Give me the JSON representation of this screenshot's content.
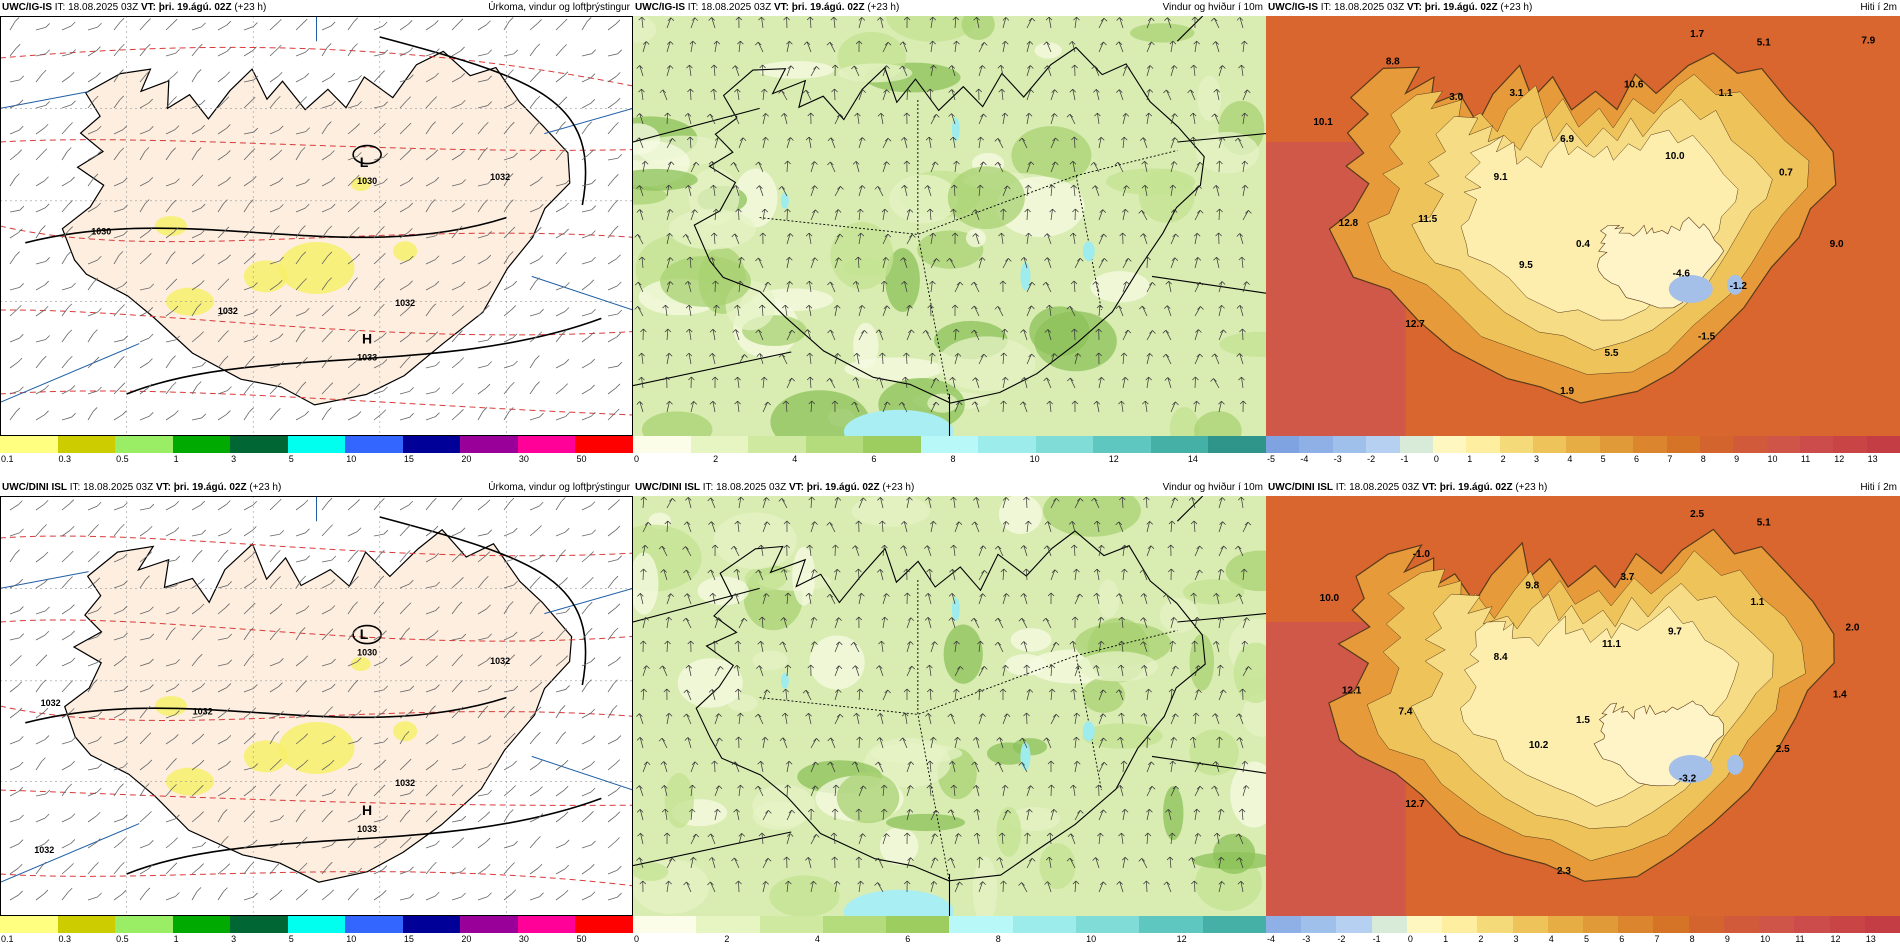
{
  "panels": [
    {
      "id": "p1",
      "model": "UWC/IG-IS",
      "it_label": "IT:",
      "it": "18.08.2025 03Z",
      "vt_label": "VT:",
      "vt": "þri. 19.ágú. 02Z",
      "lead": "(+23 h)",
      "variable": "Úrkoma, vindur og loftþrýstingur",
      "kind": "precip",
      "map_labels": [
        {
          "text": "L",
          "fx": 0.575,
          "fy": 0.36,
          "size": 14
        },
        {
          "text": "1030",
          "fx": 0.58,
          "fy": 0.4,
          "size": 9
        },
        {
          "text": "1030",
          "fx": 0.16,
          "fy": 0.52,
          "size": 9
        },
        {
          "text": "1032",
          "fx": 0.36,
          "fy": 0.71,
          "size": 9
        },
        {
          "text": "1032",
          "fx": 0.64,
          "fy": 0.69,
          "size": 9
        },
        {
          "text": "1032",
          "fx": 0.79,
          "fy": 0.39,
          "size": 9
        },
        {
          "text": "H",
          "fx": 0.58,
          "fy": 0.78,
          "size": 14
        },
        {
          "text": "1033",
          "fx": 0.58,
          "fy": 0.82,
          "size": 9
        }
      ],
      "colorbar": {
        "colors": [
          "#ffff80",
          "#cccc00",
          "#99ee66",
          "#00aa00",
          "#006633",
          "#00ffee",
          "#3366ff",
          "#000099",
          "#990099",
          "#ff0099",
          "#ff0000"
        ],
        "ticks": [
          "0.1",
          "0.3",
          "0.5",
          "1",
          "3",
          "5",
          "10",
          "15",
          "20",
          "30",
          "50"
        ]
      }
    },
    {
      "id": "p2",
      "model": "UWC/IG-IS",
      "it_label": "IT:",
      "it": "18.08.2025 03Z",
      "vt_label": "VT:",
      "vt": "þri. 19.ágú. 02Z",
      "lead": "(+23 h)",
      "variable": "Vindur og hviður í 10m",
      "kind": "wind",
      "map_labels": [],
      "colorbar": {
        "colors": [
          "#fbfde8",
          "#e6f5c2",
          "#cfeaa0",
          "#b4dc7c",
          "#9ccd5e",
          "#b8f8f8",
          "#9cecec",
          "#7fdcd6",
          "#5ec8c0",
          "#45b0a6",
          "#2f948a"
        ],
        "ticks": [
          "0",
          "2",
          "4",
          "6",
          "8",
          "10",
          "12",
          "14"
        ]
      }
    },
    {
      "id": "p3",
      "model": "UWC/IG-IS",
      "it_label": "IT:",
      "it": "18.08.2025 03Z",
      "vt_label": "VT:",
      "vt": "þri. 19.ágú. 02Z",
      "lead": "(+23 h)",
      "variable": "Hiti í 2m",
      "kind": "temp",
      "map_labels": [
        {
          "text": "1.7",
          "fx": 0.68,
          "fy": 0.05,
          "size": 10
        },
        {
          "text": "5.1",
          "fx": 0.785,
          "fy": 0.07,
          "size": 10
        },
        {
          "text": "7.9",
          "fx": 0.95,
          "fy": 0.065,
          "size": 10
        },
        {
          "text": "8.8",
          "fx": 0.2,
          "fy": 0.115,
          "size": 10
        },
        {
          "text": "3.0",
          "fx": 0.3,
          "fy": 0.2,
          "size": 10
        },
        {
          "text": "3.1",
          "fx": 0.395,
          "fy": 0.19,
          "size": 10
        },
        {
          "text": "10.6",
          "fx": 0.58,
          "fy": 0.17,
          "size": 10
        },
        {
          "text": "1.1",
          "fx": 0.725,
          "fy": 0.19,
          "size": 10
        },
        {
          "text": "10.1",
          "fx": 0.09,
          "fy": 0.26,
          "size": 10
        },
        {
          "text": "6.9",
          "fx": 0.475,
          "fy": 0.3,
          "size": 10
        },
        {
          "text": "10.0",
          "fx": 0.645,
          "fy": 0.34,
          "size": 10
        },
        {
          "text": "9.1",
          "fx": 0.37,
          "fy": 0.39,
          "size": 10
        },
        {
          "text": "0.7",
          "fx": 0.82,
          "fy": 0.38,
          "size": 10
        },
        {
          "text": "12.8",
          "fx": 0.13,
          "fy": 0.5,
          "size": 10
        },
        {
          "text": "11.5",
          "fx": 0.255,
          "fy": 0.49,
          "size": 10
        },
        {
          "text": "0.4",
          "fx": 0.5,
          "fy": 0.55,
          "size": 10
        },
        {
          "text": "9.0",
          "fx": 0.9,
          "fy": 0.55,
          "size": 10
        },
        {
          "text": "9.5",
          "fx": 0.41,
          "fy": 0.6,
          "size": 10
        },
        {
          "text": "-4.6",
          "fx": 0.655,
          "fy": 0.62,
          "size": 10
        },
        {
          "text": "-1.2",
          "fx": 0.745,
          "fy": 0.65,
          "size": 10
        },
        {
          "text": "12.7",
          "fx": 0.235,
          "fy": 0.74,
          "size": 10
        },
        {
          "text": "-1.5",
          "fx": 0.695,
          "fy": 0.77,
          "size": 10
        },
        {
          "text": "5.5",
          "fx": 0.545,
          "fy": 0.81,
          "size": 10
        },
        {
          "text": "1.9",
          "fx": 0.475,
          "fy": 0.9,
          "size": 10
        }
      ],
      "colorbar": {
        "colors": [
          "#7fa2e0",
          "#8eb0e6",
          "#a0c0ec",
          "#b6d0f2",
          "#d8ead8",
          "#fff7c0",
          "#fdeea0",
          "#f5da7a",
          "#eec35a",
          "#e7ad45",
          "#e19a38",
          "#db862e",
          "#d57426",
          "#d4642e",
          "#d15a3a",
          "#cf5548",
          "#cc4c4c",
          "#c94444",
          "#c43c44"
        ],
        "ticks": [
          "-5",
          "-4",
          "-3",
          "-2",
          "-1",
          "0",
          "1",
          "2",
          "3",
          "4",
          "5",
          "6",
          "7",
          "8",
          "9",
          "10",
          "11",
          "12",
          "13"
        ]
      }
    },
    {
      "id": "p4",
      "model": "UWC/DINI ISL",
      "it_label": "IT:",
      "it": "18.08.2025 03Z",
      "vt_label": "VT:",
      "vt": "þri. 19.ágú. 02Z",
      "lead": "(+23 h)",
      "variable": "Úrkoma, vindur og loftþrýstingur",
      "kind": "precip",
      "map_labels": [
        {
          "text": "L",
          "fx": 0.575,
          "fy": 0.34,
          "size": 14
        },
        {
          "text": "1030",
          "fx": 0.58,
          "fy": 0.38,
          "size": 9
        },
        {
          "text": "1032",
          "fx": 0.32,
          "fy": 0.52,
          "size": 9
        },
        {
          "text": "1032",
          "fx": 0.08,
          "fy": 0.5,
          "size": 9
        },
        {
          "text": "1032",
          "fx": 0.64,
          "fy": 0.69,
          "size": 9
        },
        {
          "text": "1032",
          "fx": 0.79,
          "fy": 0.4,
          "size": 9
        },
        {
          "text": "1032",
          "fx": 0.07,
          "fy": 0.85,
          "size": 9
        },
        {
          "text": "H",
          "fx": 0.58,
          "fy": 0.76,
          "size": 14
        },
        {
          "text": "1033",
          "fx": 0.58,
          "fy": 0.8,
          "size": 9
        }
      ],
      "colorbar": {
        "colors": [
          "#ffff80",
          "#cccc00",
          "#99ee66",
          "#00aa00",
          "#006633",
          "#00ffee",
          "#3366ff",
          "#000099",
          "#990099",
          "#ff0099",
          "#ff0000"
        ],
        "ticks": [
          "0.1",
          "0.3",
          "0.5",
          "1",
          "3",
          "5",
          "10",
          "15",
          "20",
          "30",
          "50"
        ]
      }
    },
    {
      "id": "p5",
      "model": "UWC/DINI ISL",
      "it_label": "IT:",
      "it": "18.08.2025 03Z",
      "vt_label": "VT:",
      "vt": "þri. 19.ágú. 02Z",
      "lead": "(+23 h)",
      "variable": "Vindur og hviður í 10m",
      "kind": "wind",
      "map_labels": [],
      "colorbar": {
        "colors": [
          "#fbfde8",
          "#e6f5c2",
          "#cfeaa0",
          "#b4dc7c",
          "#9ccd5e",
          "#b8f8f8",
          "#9cecec",
          "#7fdcd6",
          "#5ec8c0",
          "#45b0a6"
        ],
        "ticks": [
          "0",
          "2",
          "4",
          "6",
          "8",
          "10",
          "12"
        ]
      }
    },
    {
      "id": "p6",
      "model": "UWC/DINI ISL",
      "it_label": "IT:",
      "it": "18.08.2025 03Z",
      "vt_label": "VT:",
      "vt": "þri. 19.ágú. 02Z",
      "lead": "(+23 h)",
      "variable": "Hiti í 2m",
      "kind": "temp",
      "map_labels": [
        {
          "text": "2.5",
          "fx": 0.68,
          "fy": 0.05,
          "size": 10
        },
        {
          "text": "5.1",
          "fx": 0.785,
          "fy": 0.07,
          "size": 10
        },
        {
          "text": "-1.0",
          "fx": 0.245,
          "fy": 0.145,
          "size": 10
        },
        {
          "text": "10.0",
          "fx": 0.1,
          "fy": 0.25,
          "size": 10
        },
        {
          "text": "9.8",
          "fx": 0.42,
          "fy": 0.22,
          "size": 10
        },
        {
          "text": "3.7",
          "fx": 0.57,
          "fy": 0.2,
          "size": 10
        },
        {
          "text": "1.1",
          "fx": 0.775,
          "fy": 0.26,
          "size": 10
        },
        {
          "text": "9.7",
          "fx": 0.645,
          "fy": 0.33,
          "size": 10
        },
        {
          "text": "2.0",
          "fx": 0.925,
          "fy": 0.32,
          "size": 10
        },
        {
          "text": "11.1",
          "fx": 0.545,
          "fy": 0.36,
          "size": 10
        },
        {
          "text": "8.4",
          "fx": 0.37,
          "fy": 0.39,
          "size": 10
        },
        {
          "text": "12.1",
          "fx": 0.135,
          "fy": 0.47,
          "size": 10
        },
        {
          "text": "1.4",
          "fx": 0.905,
          "fy": 0.48,
          "size": 10
        },
        {
          "text": "7.4",
          "fx": 0.22,
          "fy": 0.52,
          "size": 10
        },
        {
          "text": "1.5",
          "fx": 0.5,
          "fy": 0.54,
          "size": 10
        },
        {
          "text": "10.2",
          "fx": 0.43,
          "fy": 0.6,
          "size": 10
        },
        {
          "text": "2.5",
          "fx": 0.815,
          "fy": 0.61,
          "size": 10
        },
        {
          "text": "-3.2",
          "fx": 0.665,
          "fy": 0.68,
          "size": 10
        },
        {
          "text": "12.7",
          "fx": 0.235,
          "fy": 0.74,
          "size": 10
        },
        {
          "text": "2.3",
          "fx": 0.47,
          "fy": 0.9,
          "size": 10
        }
      ],
      "colorbar": {
        "colors": [
          "#8eb0e6",
          "#a0c0ec",
          "#b6d0f2",
          "#d8ead8",
          "#fff7c0",
          "#fdeea0",
          "#f5da7a",
          "#eec35a",
          "#e7ad45",
          "#e19a38",
          "#db862e",
          "#d57426",
          "#d4642e",
          "#d15a3a",
          "#cf5548",
          "#cc4c4c",
          "#c94444",
          "#c43c44"
        ],
        "ticks": [
          "-4",
          "-3",
          "-2",
          "-1",
          "0",
          "1",
          "2",
          "3",
          "4",
          "5",
          "6",
          "7",
          "8",
          "9",
          "10",
          "11",
          "12",
          "13"
        ]
      }
    }
  ]
}
